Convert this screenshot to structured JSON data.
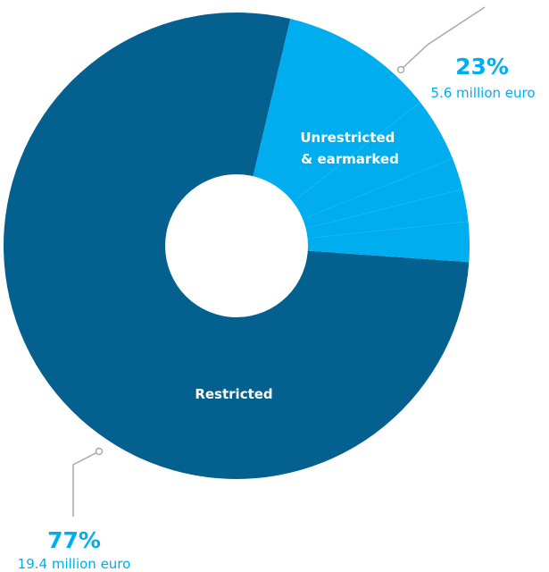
{
  "chart_data": {
    "type": "pie",
    "title": "",
    "slices": [
      {
        "name_lines": [
          "Restricted"
        ],
        "percent_label": "77%",
        "amount_label": "19.4 million euro",
        "value": 19.4,
        "percent": 77,
        "color": "#04618f"
      },
      {
        "name_lines": [
          "Unrestricted",
          "& earmarked"
        ],
        "percent_label": "23%",
        "amount_label": "5.6 million euro",
        "value": 5.6,
        "percent": 23,
        "color": "#00adee"
      }
    ]
  },
  "colors": {
    "restricted": "#04618f",
    "unrestricted": "#00adee",
    "percent_text": "#00adee",
    "amount_text": "#00adee",
    "leader_line": "#a9a9a9"
  }
}
